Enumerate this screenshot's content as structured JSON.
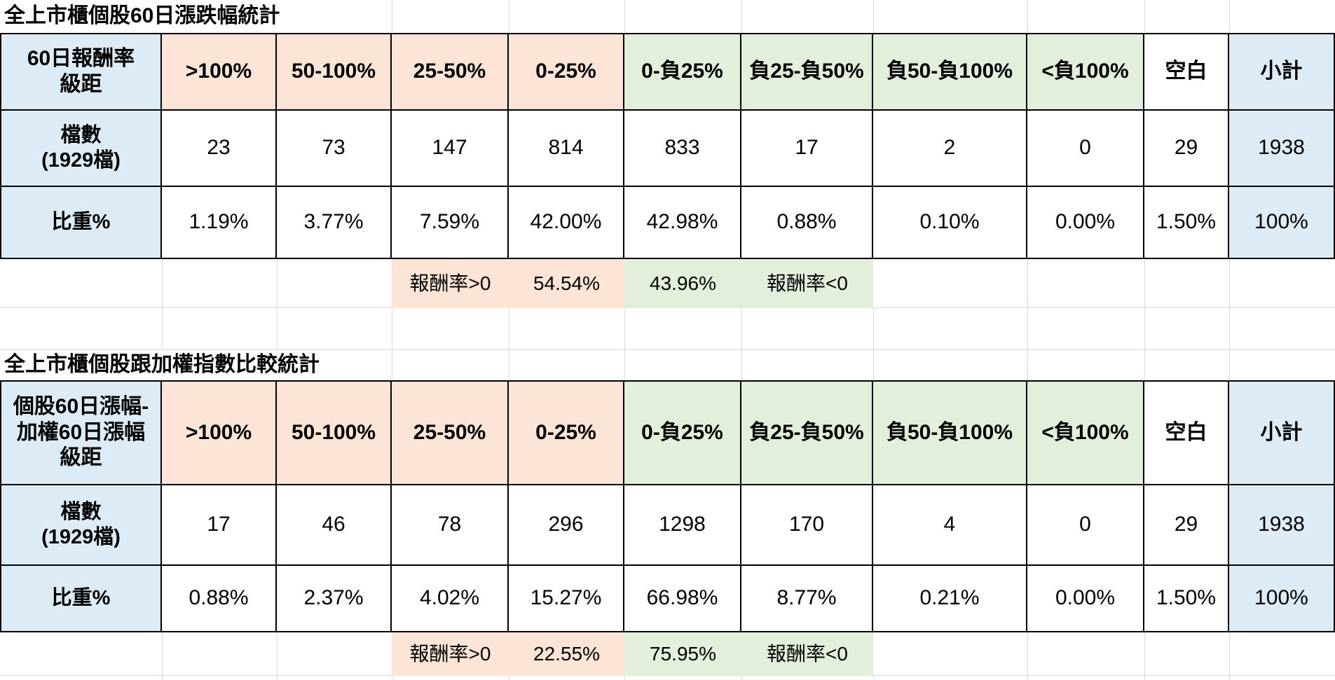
{
  "colors": {
    "blue": "#DDEBF7",
    "peach": "#FCE4D6",
    "green": "#E2EFDA",
    "border": "#000000",
    "gridline": "#D9D9D9"
  },
  "tables": [
    {
      "title": "全上市櫃個股60日漲跌幅統計",
      "row_label_header": "60日報酬率\n級距",
      "columns": [
        ">100%",
        "50-100%",
        "25-50%",
        "0-25%",
        "0-負25%",
        "負25-負50%",
        "負50-負100%",
        "<負100%",
        "空白",
        "小計"
      ],
      "rows": [
        {
          "label": "檔數\n(1929檔)",
          "values": [
            "23",
            "73",
            "147",
            "814",
            "833",
            "17",
            "2",
            "0",
            "29",
            "1938"
          ]
        },
        {
          "label": "比重%",
          "values": [
            "1.19%",
            "3.77%",
            "7.59%",
            "42.00%",
            "42.98%",
            "0.88%",
            "0.10%",
            "0.00%",
            "1.50%",
            "100%"
          ]
        }
      ],
      "summary": {
        "pos_label": "報酬率>0",
        "pos_value": "54.54%",
        "neg_value": "43.96%",
        "neg_label": "報酬率<0"
      }
    },
    {
      "title": "全上市櫃個股跟加權指數比較統計",
      "row_label_header": "個股60日漲幅-\n加權60日漲幅\n級距",
      "columns": [
        ">100%",
        "50-100%",
        "25-50%",
        "0-25%",
        "0-負25%",
        "負25-負50%",
        "負50-負100%",
        "<負100%",
        "空白",
        "小計"
      ],
      "rows": [
        {
          "label": "檔數\n(1929檔)",
          "values": [
            "17",
            "46",
            "78",
            "296",
            "1298",
            "170",
            "4",
            "0",
            "29",
            "1938"
          ]
        },
        {
          "label": "比重%",
          "values": [
            "0.88%",
            "2.37%",
            "4.02%",
            "15.27%",
            "66.98%",
            "8.77%",
            "0.21%",
            "0.00%",
            "1.50%",
            "100%"
          ]
        }
      ],
      "summary": {
        "pos_label": "報酬率>0",
        "pos_value": "22.55%",
        "neg_value": "75.95%",
        "neg_label": "報酬率<0"
      }
    }
  ]
}
